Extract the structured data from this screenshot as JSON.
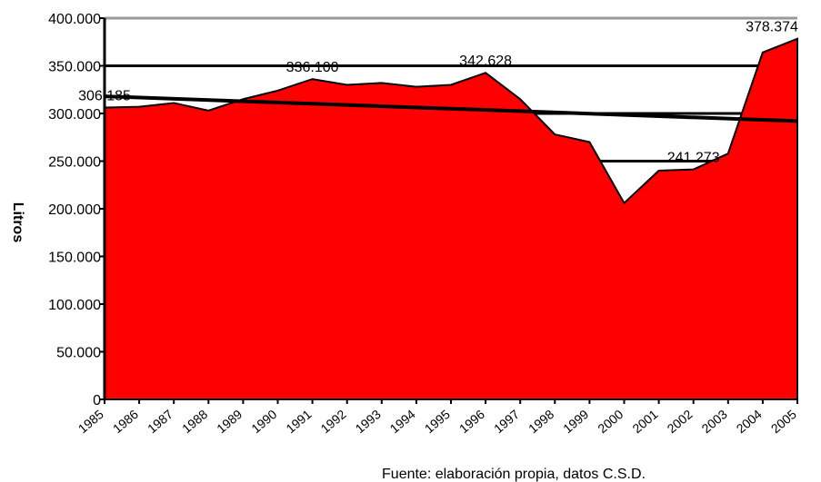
{
  "chart_data": {
    "type": "area",
    "y_label": "Litros",
    "source": "Fuente: elaboración propia, datos C.S.D.",
    "categories": [
      "1985",
      "1986",
      "1987",
      "1988",
      "1989",
      "1990",
      "1991",
      "1992",
      "1993",
      "1994",
      "1995",
      "1996",
      "1997",
      "1998",
      "1999",
      "2000",
      "2001",
      "2002",
      "2003",
      "2004",
      "2005"
    ],
    "series": [
      {
        "color": "#ff0000",
        "values": [
          306185,
          307000,
          311000,
          303000,
          315000,
          324000,
          336100,
          330000,
          332000,
          328000,
          330000,
          342628,
          315000,
          278000,
          270000,
          206000,
          240000,
          241273,
          258000,
          364000,
          378374
        ],
        "value_labels": [
          "306.185",
          null,
          null,
          null,
          null,
          null,
          "336.100",
          null,
          null,
          null,
          null,
          "342.628",
          null,
          null,
          null,
          null,
          null,
          "241.273",
          null,
          null,
          "378.374"
        ]
      }
    ],
    "trend": {
      "color": "#000000",
      "values": [
        318000,
        292000
      ]
    },
    "ylim": [
      0,
      400000
    ],
    "yticks": [
      {
        "value": 0,
        "label": "0"
      },
      {
        "value": 50000,
        "label": "50.000"
      },
      {
        "value": 100000,
        "label": "100.000"
      },
      {
        "value": 150000,
        "label": "150.000"
      },
      {
        "value": 200000,
        "label": "200.000"
      },
      {
        "value": 250000,
        "label": "250.000"
      },
      {
        "value": 300000,
        "label": "300.000"
      },
      {
        "value": 350000,
        "label": "350.000"
      },
      {
        "value": 400000,
        "label": "400.000"
      }
    ],
    "grid": true
  }
}
